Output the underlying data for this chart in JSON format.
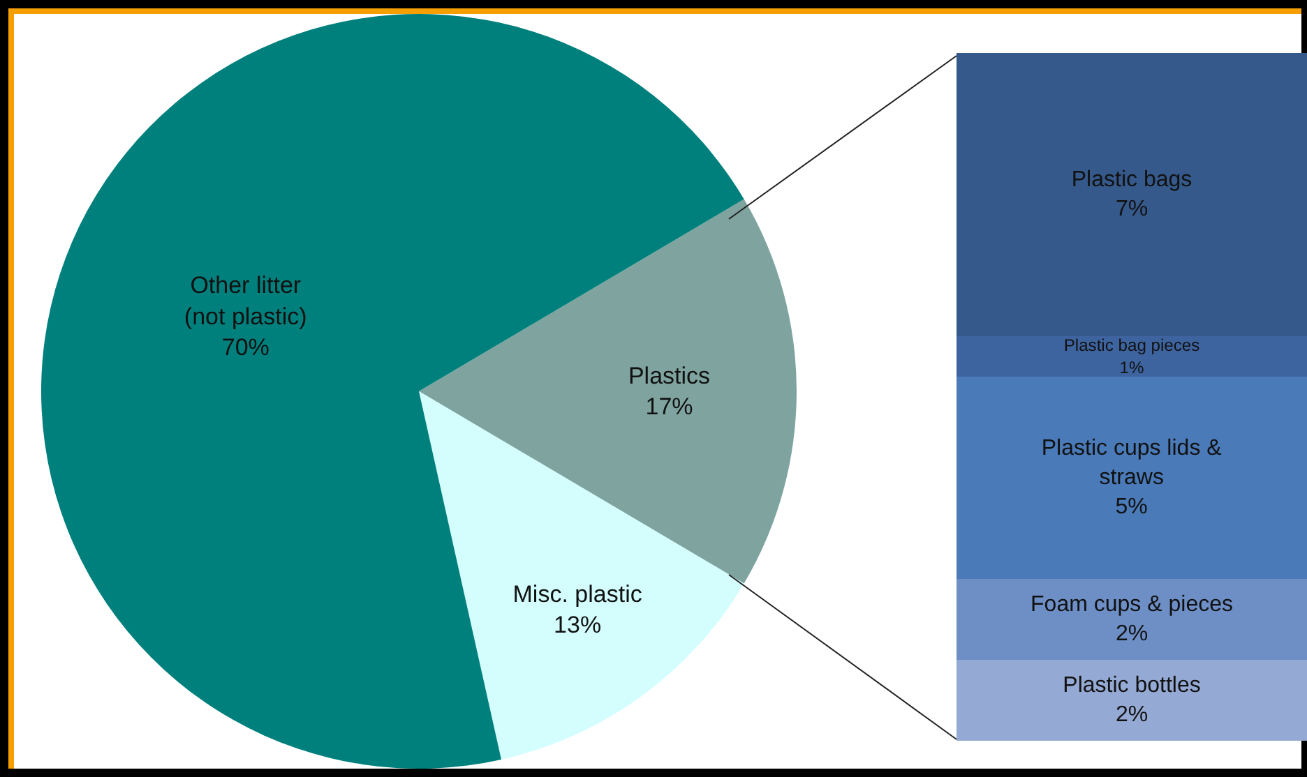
{
  "chart_data": [
    {
      "type": "pie",
      "categories": [
        "Plastics",
        "Misc. plastic",
        "Other litter\n(not plastic)"
      ],
      "values": [
        17,
        13,
        70
      ],
      "value_labels": [
        "17%",
        "13%",
        "70%"
      ],
      "colors": [
        "#7fa49f",
        "#d4fefe",
        "#00807c"
      ]
    },
    {
      "type": "bar",
      "stacked": true,
      "categories": [
        null
      ],
      "series": [
        {
          "name": "Plastic bottles",
          "color": "#94a9d3",
          "values": [
            2
          ],
          "value_labels": [
            "2%"
          ]
        },
        {
          "name": "Foam cups & pieces",
          "color": "#6d8fc6",
          "values": [
            2
          ],
          "value_labels": [
            "2%"
          ]
        },
        {
          "name": "Plastic cups lids &\nstraws",
          "color": "#4a7ab8",
          "values": [
            5
          ],
          "value_labels": [
            "5%"
          ]
        },
        {
          "name": "Plastic bag pieces",
          "color": "#3e64a0",
          "values": [
            1
          ],
          "value_labels": [
            "1%"
          ]
        },
        {
          "name": "Plastic bags",
          "color": "#35598a",
          "values": [
            7
          ],
          "value_labels": [
            "7%"
          ]
        }
      ]
    }
  ]
}
